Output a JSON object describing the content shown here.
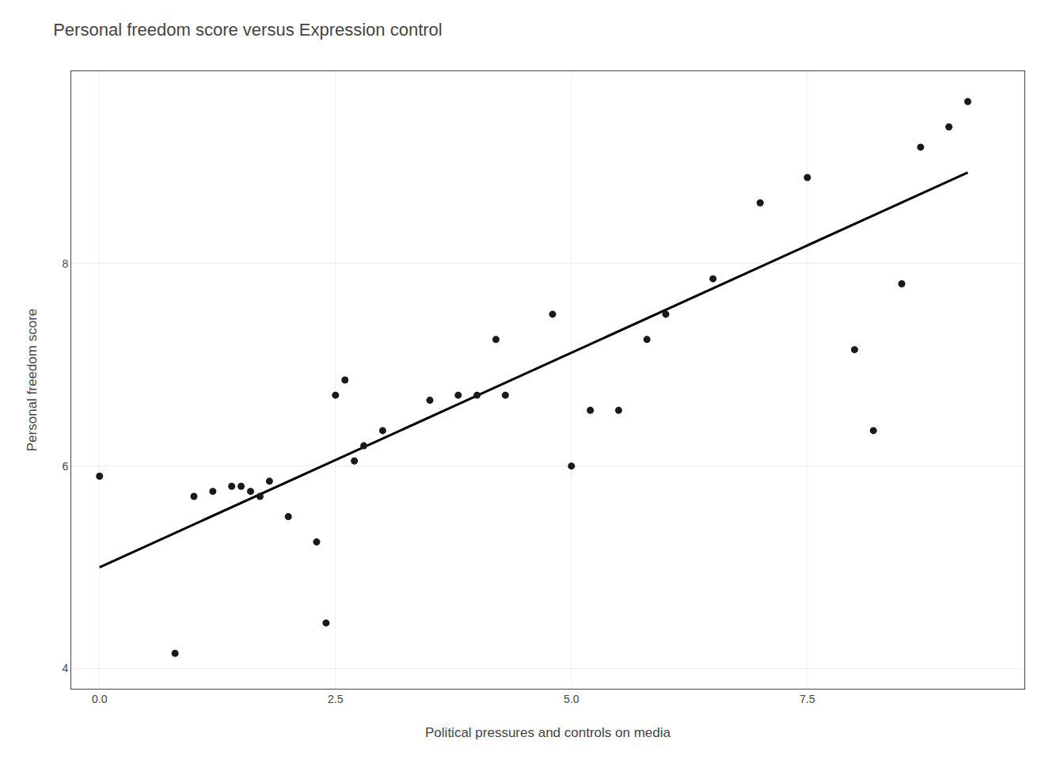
{
  "chart_data": {
    "type": "scatter",
    "title": "Personal freedom score versus Expression control",
    "xlabel": "Political pressures and controls on media",
    "ylabel": "Personal freedom score",
    "series": [
      {
        "type": "scatter",
        "marker": "circle",
        "color": "#1a1a1a",
        "x": [
          0.0,
          0.8,
          1.0,
          1.2,
          1.4,
          1.5,
          1.6,
          1.7,
          1.8,
          2.0,
          2.3,
          2.4,
          2.5,
          2.6,
          2.7,
          2.8,
          3.0,
          3.5,
          3.8,
          4.0,
          4.2,
          4.3,
          4.8,
          5.0,
          5.2,
          5.5,
          5.8,
          6.0,
          6.5,
          7.0,
          7.5,
          8.0,
          8.2,
          8.5,
          8.7,
          9.0,
          9.2
        ],
        "values": [
          5.9,
          4.15,
          5.7,
          5.75,
          5.8,
          5.8,
          5.75,
          5.7,
          5.85,
          5.5,
          5.25,
          4.45,
          6.7,
          6.85,
          6.05,
          6.2,
          6.35,
          6.65,
          6.7,
          6.7,
          7.25,
          6.7,
          7.5,
          6.0,
          6.55,
          6.55,
          7.25,
          7.5,
          7.85,
          8.6,
          8.85,
          7.15,
          6.35,
          7.8,
          9.15,
          9.35,
          9.6
        ]
      },
      {
        "type": "line",
        "line_style": "solid",
        "color": "#000000",
        "x": [
          0.0,
          9.2
        ],
        "values": [
          5.0,
          8.9
        ]
      }
    ],
    "xlim": [
      -0.3,
      9.8
    ],
    "ylim": [
      3.8,
      9.9
    ],
    "xticks": [
      {
        "value": 0.0,
        "label": "0.0"
      },
      2.5,
      {
        "value": 5.0,
        "label": "5.0"
      },
      7.5
    ],
    "yticks": [
      4,
      6,
      8
    ],
    "grid": true
  }
}
